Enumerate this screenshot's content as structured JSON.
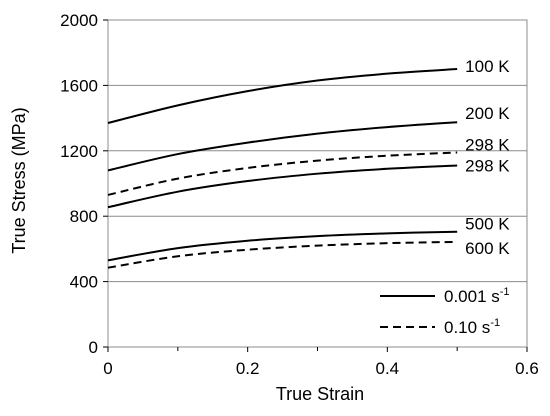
{
  "chart_data": {
    "type": "line",
    "xlabel": "True Strain",
    "ylabel": "True Stress (MPa)",
    "xlim": [
      0,
      0.6
    ],
    "ylim": [
      0,
      2000
    ],
    "x_ticks": [
      0,
      0.2,
      0.4,
      0.6
    ],
    "x_tick_labels": [
      "0",
      "0.2",
      "0.4",
      "0.6"
    ],
    "x_minor_ticks": [
      0.1,
      0.3,
      0.5
    ],
    "y_ticks": [
      0,
      400,
      800,
      1200,
      1600,
      2000
    ],
    "y_tick_labels": [
      "0",
      "400",
      "800",
      "1200",
      "1600",
      "2000"
    ],
    "y_gridlines": [
      400,
      800,
      1200,
      1600
    ],
    "grid": "horizontal",
    "legend_position": "bottom-right",
    "legend": [
      {
        "style": "solid",
        "text": "0.001 s",
        "superscript": "-1"
      },
      {
        "style": "dashed",
        "text": "0.10 s",
        "superscript": "-1"
      }
    ],
    "series": [
      {
        "label": "100 K",
        "style": "solid",
        "x": [
          0,
          0.1,
          0.2,
          0.3,
          0.4,
          0.5
        ],
        "y": [
          1370,
          1478,
          1565,
          1630,
          1672,
          1700
        ]
      },
      {
        "label": "200 K",
        "style": "solid",
        "x": [
          0,
          0.1,
          0.2,
          0.3,
          0.4,
          0.5
        ],
        "y": [
          1080,
          1180,
          1250,
          1305,
          1345,
          1375
        ]
      },
      {
        "label": "298 K",
        "style": "dashed",
        "x": [
          0,
          0.1,
          0.2,
          0.3,
          0.4,
          0.5
        ],
        "y": [
          930,
          1030,
          1095,
          1140,
          1170,
          1190
        ]
      },
      {
        "label": "298 K",
        "style": "solid",
        "x": [
          0,
          0.1,
          0.2,
          0.3,
          0.4,
          0.5
        ],
        "y": [
          855,
          950,
          1015,
          1060,
          1090,
          1110
        ]
      },
      {
        "label": "500 K",
        "style": "solid",
        "x": [
          0,
          0.1,
          0.2,
          0.3,
          0.4,
          0.5
        ],
        "y": [
          530,
          605,
          650,
          678,
          695,
          705
        ]
      },
      {
        "label": "600 K",
        "style": "dashed",
        "x": [
          0,
          0.1,
          0.2,
          0.3,
          0.4,
          0.5
        ],
        "y": [
          485,
          555,
          595,
          620,
          635,
          643
        ]
      }
    ]
  }
}
